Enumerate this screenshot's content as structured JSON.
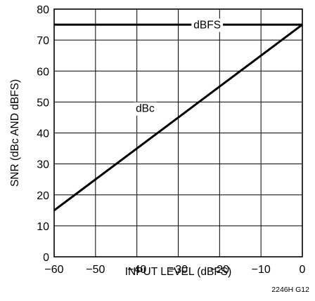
{
  "chart_data": {
    "type": "line",
    "title": "",
    "xlabel": "INPUT LEVEL (dBFS)",
    "ylabel": "SNR (dBc AND dBFS)",
    "xlim": [
      -60,
      0
    ],
    "ylim": [
      0,
      80
    ],
    "x_ticks": [
      -60,
      -50,
      -40,
      -30,
      -20,
      -10,
      0
    ],
    "y_ticks": [
      0,
      10,
      20,
      30,
      40,
      50,
      60,
      70,
      80
    ],
    "x_tick_labels": [
      "−60",
      "−50",
      "−40",
      "−30",
      "−20",
      "−10",
      "0"
    ],
    "y_tick_labels": [
      "0",
      "10",
      "20",
      "30",
      "40",
      "50",
      "60",
      "70",
      "80"
    ],
    "grid": true,
    "series": [
      {
        "name": "dBFS",
        "x": [
          -60,
          0
        ],
        "y": [
          75,
          75
        ],
        "label_at": {
          "x": -23,
          "y": 75
        }
      },
      {
        "name": "dBc",
        "x": [
          -60,
          0
        ],
        "y": [
          15,
          75
        ],
        "label_at": {
          "x": -38,
          "y": 48
        }
      }
    ],
    "figure_code": "2246H G12"
  }
}
